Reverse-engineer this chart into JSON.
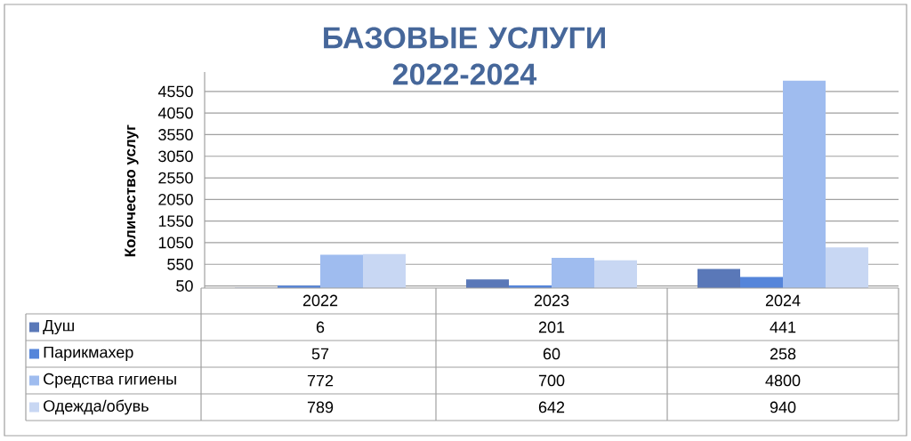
{
  "chart_data": {
    "type": "bar",
    "title": "БАЗОВЫЕ УСЛУГИ 2022-2024",
    "ylabel": "Количество услуг",
    "categories": [
      "2022",
      "2023",
      "2024"
    ],
    "series": [
      {
        "name": "Душ",
        "color": "#5a78b8",
        "values": [
          6,
          201,
          441
        ]
      },
      {
        "name": "Парикмахер",
        "color": "#5585da",
        "values": [
          57,
          60,
          258
        ]
      },
      {
        "name": "Средства гигиены",
        "color": "#9fbcef",
        "values": [
          772,
          700,
          4800
        ]
      },
      {
        "name": "Одежда/обувь",
        "color": "#c8d7f3",
        "values": [
          789,
          642,
          940
        ]
      }
    ],
    "ylim": [
      0,
      5000
    ],
    "yticks": [
      50,
      550,
      1050,
      1550,
      2050,
      2550,
      3050,
      3550,
      4050,
      4550
    ],
    "grid": "y",
    "legend": "bottom",
    "data_labels": true
  }
}
